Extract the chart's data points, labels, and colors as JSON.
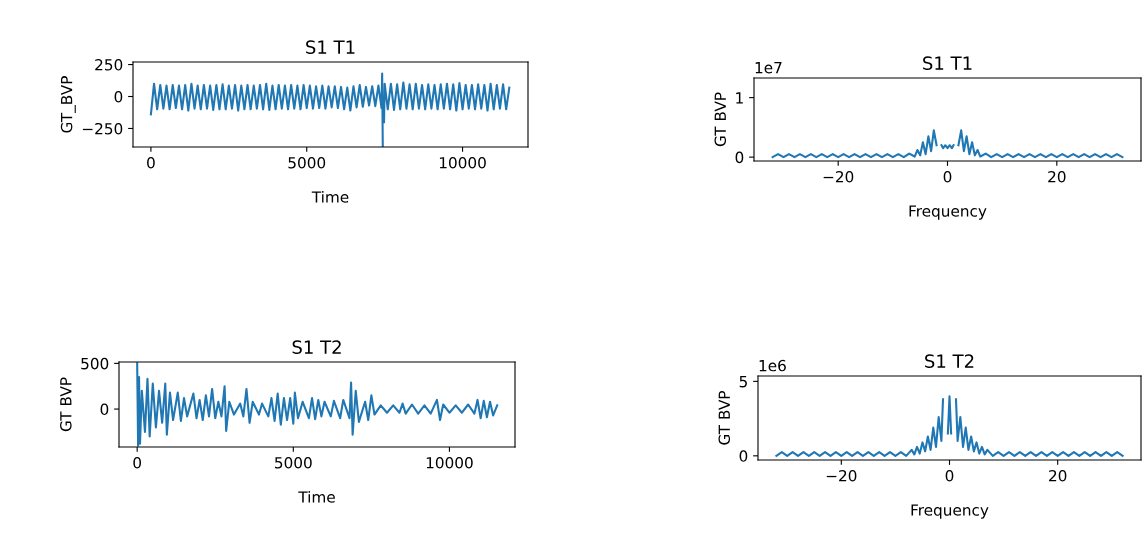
{
  "chart_data": [
    {
      "type": "line",
      "title": "S1 T1",
      "xlabel": "Time",
      "ylabel": "GT_BVP",
      "xlim": [
        -575,
        12100
      ],
      "ylim": [
        -395,
        270
      ],
      "xticks": [
        0,
        5000,
        10000
      ],
      "yticks": [
        {
          "value": -250,
          "label": "−250"
        },
        0,
        250
      ],
      "series": [
        {
          "color": "#1f77b4",
          "x": [
            0,
            100,
            200,
            300,
            400,
            500,
            600,
            700,
            800,
            900,
            1000,
            1100,
            1200,
            1300,
            1400,
            1500,
            1600,
            1700,
            1800,
            1900,
            2000,
            2100,
            2200,
            2300,
            2400,
            2500,
            2600,
            2700,
            2800,
            2900,
            3000,
            3100,
            3200,
            3300,
            3400,
            3500,
            3600,
            3700,
            3800,
            3900,
            4000,
            4100,
            4200,
            4300,
            4400,
            4500,
            4600,
            4700,
            4800,
            4900,
            5000,
            5100,
            5200,
            5300,
            5400,
            5500,
            5600,
            5700,
            5800,
            5900,
            6000,
            6100,
            6200,
            6300,
            6400,
            6500,
            6600,
            6700,
            6800,
            6900,
            7000,
            7100,
            7200,
            7300,
            7400,
            7420,
            7440,
            7460,
            7480,
            7500,
            7600,
            7700,
            7800,
            7900,
            8000,
            8100,
            8200,
            8300,
            8400,
            8500,
            8600,
            8700,
            8800,
            8900,
            9000,
            9100,
            9200,
            9300,
            9400,
            9500,
            9600,
            9700,
            9800,
            9900,
            10000,
            10100,
            10200,
            10300,
            10400,
            10500,
            10600,
            10700,
            10800,
            10900,
            11000,
            11100,
            11200,
            11300,
            11400,
            11500
          ],
          "values": [
            -140,
            100,
            -100,
            90,
            -95,
            85,
            -100,
            90,
            -90,
            85,
            -100,
            90,
            -110,
            100,
            -95,
            85,
            -100,
            90,
            -95,
            85,
            -105,
            90,
            -100,
            95,
            -100,
            85,
            -95,
            90,
            -110,
            85,
            -100,
            90,
            -100,
            85,
            -95,
            90,
            -100,
            100,
            -105,
            85,
            -100,
            90,
            -95,
            85,
            -100,
            90,
            -95,
            85,
            -100,
            90,
            -90,
            85,
            -95,
            80,
            -90,
            85,
            -95,
            80,
            -85,
            80,
            -90,
            75,
            -100,
            70,
            -110,
            80,
            -85,
            90,
            -80,
            75,
            -70,
            80,
            -75,
            85,
            -90,
            180,
            -390,
            null,
            -200,
            100,
            -100,
            100,
            -105,
            95,
            -100,
            110,
            -95,
            95,
            -100,
            100,
            -95,
            90,
            -100,
            95,
            -95,
            90,
            -100,
            95,
            -95,
            100,
            -100,
            95,
            -110,
            105,
            -100,
            90,
            -95,
            90,
            -100,
            95,
            -95,
            90,
            -110,
            100,
            -100,
            90,
            -95,
            95,
            -100,
            70
          ]
        }
      ]
    },
    {
      "type": "line",
      "title": "S1 T1",
      "xlabel": "Frequency",
      "ylabel": "GT BVP",
      "annotations": [
        "1e7"
      ],
      "xlim": [
        -35.4,
        35.4
      ],
      "ylim": [
        -0.065,
        1.33
      ],
      "xticks": [
        {
          "value": -20,
          "label": "−20"
        },
        0,
        20
      ],
      "yticks": [
        0,
        1
      ],
      "series": [
        {
          "color": "#1f77b4",
          "x": [
            -32,
            -31,
            -30,
            -29,
            -28,
            -27,
            -26,
            -25,
            -24,
            -23,
            -22,
            -21,
            -20,
            -19,
            -18,
            -17,
            -16,
            -15,
            -14,
            -13,
            -12,
            -11,
            -10,
            -9,
            -8,
            -7,
            -6,
            -5.5,
            -5,
            -4.5,
            -4,
            -3.5,
            -3,
            -2.5,
            -2,
            -1.8,
            -1.5,
            -1.1,
            -0.8,
            -0.4,
            0,
            0.4,
            0.8,
            1.1,
            1.5,
            1.8,
            2,
            2.5,
            3,
            3.5,
            4,
            4.5,
            5,
            5.5,
            6,
            7,
            8,
            9,
            10,
            11,
            12,
            13,
            14,
            15,
            16,
            17,
            18,
            19,
            20,
            21,
            22,
            23,
            24,
            25,
            26,
            27,
            28,
            29,
            30,
            31,
            32
          ],
          "values": [
            0,
            0.05,
            0,
            0.05,
            0,
            0.05,
            0,
            0.05,
            0,
            0.05,
            0,
            0.05,
            0,
            0.05,
            0,
            0.05,
            0,
            0.05,
            0,
            0.05,
            0,
            0.05,
            0,
            0.05,
            0,
            0.06,
            0.01,
            0.12,
            0.03,
            0.25,
            0.05,
            0.35,
            0.1,
            0.45,
            0.2,
            null,
            null,
            0.2,
            0.15,
            0.2,
            0.15,
            0.2,
            0.15,
            0.2,
            null,
            null,
            0.2,
            0.45,
            0.1,
            0.35,
            0.05,
            0.25,
            0.03,
            0.12,
            0.01,
            0.06,
            0,
            0.05,
            0,
            0.05,
            0,
            0.05,
            0,
            0.05,
            0,
            0.05,
            0,
            0.05,
            0,
            0.05,
            0,
            0.05,
            0,
            0.05,
            0,
            0.05,
            0,
            0.05,
            0,
            0.05,
            0
          ]
        }
      ]
    },
    {
      "type": "line",
      "title": "S1 T2",
      "xlabel": "Time",
      "ylabel": "GT BVP",
      "xlim": [
        -582,
        12100
      ],
      "ylim": [
        -415,
        515
      ],
      "xticks": [
        0,
        5000,
        10000
      ],
      "yticks": [
        0,
        500
      ],
      "series": [
        {
          "color": "#1f77b4",
          "x": [
            0,
            30,
            60,
            90,
            150,
            250,
            330,
            400,
            500,
            600,
            700,
            800,
            900,
            950,
            1050,
            1150,
            1300,
            1400,
            1500,
            1600,
            1800,
            1900,
            2000,
            2100,
            2200,
            2300,
            2400,
            2500,
            2600,
            2700,
            2800,
            2850,
            2950,
            3100,
            3300,
            3400,
            3500,
            3600,
            3700,
            3900,
            4000,
            4200,
            4300,
            4400,
            4500,
            4600,
            4700,
            4800,
            4900,
            5000,
            5050,
            5150,
            5300,
            5500,
            5600,
            5700,
            5800,
            5900,
            6000,
            6200,
            6300,
            6500,
            6600,
            6800,
            6850,
            6900,
            7000,
            7100,
            7300,
            7400,
            7500,
            7600,
            7800,
            8000,
            8200,
            8400,
            8500,
            8600,
            8800,
            9000,
            9200,
            9400,
            9600,
            9700,
            9800,
            10000,
            10200,
            10400,
            10600,
            10800,
            10900,
            11000,
            11100,
            11200,
            11300,
            11400,
            11530
          ],
          "values": [
            500,
            -400,
            350,
            -380,
            200,
            -250,
            330,
            -300,
            280,
            -200,
            200,
            -150,
            280,
            -280,
            180,
            -120,
            180,
            -130,
            120,
            -80,
            170,
            -100,
            100,
            -120,
            150,
            -80,
            220,
            -100,
            80,
            -80,
            250,
            -240,
            80,
            -60,
            60,
            -80,
            220,
            -150,
            80,
            -60,
            60,
            -80,
            120,
            -130,
            170,
            -170,
            120,
            -120,
            120,
            -160,
            180,
            -100,
            80,
            -100,
            120,
            -110,
            100,
            -80,
            80,
            -80,
            90,
            -100,
            100,
            -100,
            290,
            -280,
            200,
            -140,
            80,
            -120,
            150,
            -60,
            40,
            -40,
            40,
            -40,
            60,
            -50,
            50,
            -50,
            40,
            -50,
            100,
            -120,
            50,
            -40,
            40,
            -40,
            50,
            -50,
            100,
            -100,
            90,
            -90,
            80,
            -70,
            40
          ]
        }
      ]
    },
    {
      "type": "line",
      "title": "S1 T2",
      "xlabel": "Frequency",
      "ylabel": "GT BVP",
      "annotations": [
        "1e6"
      ],
      "xlim": [
        -35.4,
        35.4
      ],
      "ylim": [
        -0.28,
        5.36
      ],
      "xticks": [
        {
          "value": -20,
          "label": "−20"
        },
        0,
        20
      ],
      "yticks": [
        0,
        5
      ],
      "series": [
        {
          "color": "#1f77b4",
          "x": [
            -32,
            -31,
            -30,
            -29,
            -28,
            -27,
            -26,
            -25,
            -24,
            -23,
            -22,
            -21,
            -20,
            -19,
            -18,
            -17,
            -16,
            -15,
            -14,
            -13,
            -12,
            -11,
            -10,
            -9,
            -8,
            -7,
            -6.5,
            -6,
            -5.5,
            -5,
            -4.5,
            -4,
            -3.5,
            -3,
            -2.5,
            -2,
            -1.5,
            -1.2,
            -0.8,
            -0.5,
            -0.3,
            0,
            0.3,
            0.5,
            0.8,
            1.2,
            1.5,
            2,
            2.5,
            3,
            3.5,
            4,
            4.5,
            5,
            5.5,
            6,
            6.5,
            7,
            8,
            9,
            10,
            11,
            12,
            13,
            14,
            15,
            16,
            17,
            18,
            19,
            20,
            21,
            22,
            23,
            24,
            25,
            26,
            27,
            28,
            29,
            30,
            31,
            32
          ],
          "values": [
            0,
            0.25,
            0,
            0.25,
            0,
            0.25,
            0,
            0.25,
            0,
            0.25,
            0,
            0.25,
            0,
            0.25,
            0,
            0.25,
            0,
            0.25,
            0,
            0.25,
            0,
            0.25,
            0,
            0.25,
            0,
            0.4,
            0.1,
            0.6,
            0.15,
            0.9,
            0.3,
            1.3,
            0.4,
            1.9,
            0.6,
            2.6,
            1.0,
            3.8,
            null,
            null,
            1.5,
            4.0,
            1.5,
            null,
            null,
            3.8,
            1.0,
            2.6,
            0.6,
            1.9,
            0.4,
            1.3,
            0.3,
            0.9,
            0.15,
            0.6,
            0.1,
            0.4,
            0,
            0.25,
            0,
            0.25,
            0,
            0.25,
            0,
            0.25,
            0,
            0.25,
            0,
            0.25,
            0,
            0.25,
            0,
            0.25,
            0,
            0.25,
            0,
            0.25,
            0,
            0.25,
            0,
            0.25,
            0
          ]
        }
      ]
    }
  ]
}
